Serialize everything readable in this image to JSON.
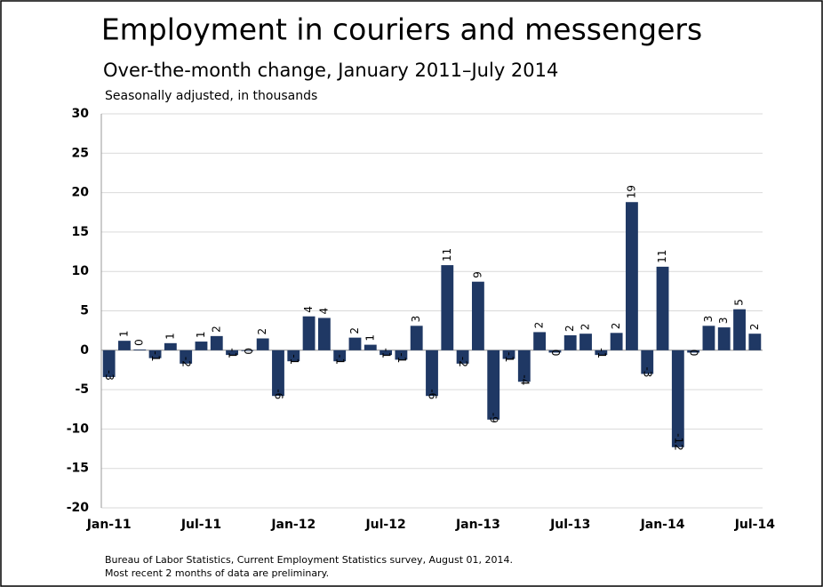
{
  "chart_data": {
    "type": "bar",
    "title": "Employment in couriers and messengers",
    "subtitle": "Over-the-month change, January 2011–July 2014",
    "y_label": "Seasonally adjusted, in thousands",
    "notes": [
      "Bureau of Labor Statistics, Current Employment Statistics survey, August 01, 2014.",
      "Most recent 2 months of data are preliminary."
    ],
    "categories": [
      "Jan-11",
      null,
      null,
      null,
      null,
      null,
      "Jul-11",
      null,
      null,
      null,
      null,
      null,
      "Jan-12",
      null,
      null,
      null,
      null,
      null,
      "Jul-12",
      null,
      null,
      null,
      null,
      null,
      "Jan-13",
      null,
      null,
      null,
      null,
      null,
      "Jul-13",
      null,
      null,
      null,
      null,
      null,
      "Jan-14",
      null,
      null,
      null,
      null,
      null,
      "Jul-14"
    ],
    "values": [
      -3.4,
      1.2,
      0.1,
      -1.0,
      0.9,
      -1.7,
      1.1,
      1.8,
      -0.6,
      -0.1,
      1.5,
      -5.8,
      -1.4,
      4.3,
      4.1,
      -1.4,
      1.6,
      0.7,
      -0.6,
      -1.2,
      3.1,
      -5.8,
      10.8,
      -1.7,
      8.7,
      -8.8,
      -1.1,
      -4.0,
      2.3,
      -0.3,
      1.9,
      2.1,
      -0.6,
      2.2,
      18.8,
      -3.0,
      10.6,
      -12.3,
      -0.3,
      3.1,
      2.9,
      5.2,
      2.1
    ],
    "value_labels": [
      "-3",
      "1",
      "0",
      "-1",
      "1",
      "-2",
      "1",
      "2",
      "-1",
      "0",
      "2",
      "-6",
      "-1",
      "4",
      "4",
      "-1",
      "2",
      "1",
      "-1",
      "-1",
      "3",
      "-6",
      "11",
      "-2",
      "9",
      "-9",
      "-1",
      "-4",
      "2",
      "0",
      "2",
      "2",
      "-1",
      "2",
      "19",
      "-3",
      "11",
      "-12",
      "0",
      "3",
      "3",
      "5",
      "2"
    ],
    "color": "#1f3864",
    "ylim": [
      -20,
      30
    ],
    "yticks": [
      -20,
      -15,
      -10,
      -5,
      0,
      5,
      10,
      15,
      20,
      25,
      30
    ],
    "grid": true
  }
}
